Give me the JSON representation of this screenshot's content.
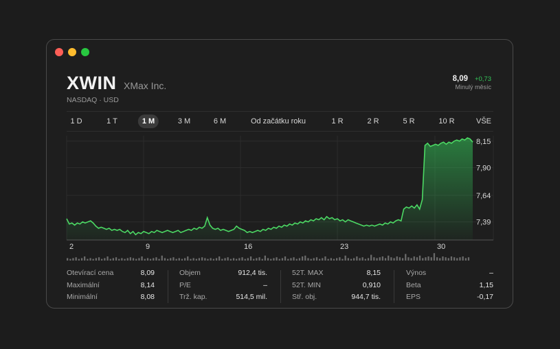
{
  "window": {
    "controls": [
      "close",
      "minimize",
      "zoom"
    ]
  },
  "header": {
    "ticker": "XWIN",
    "company": "XMax Inc.",
    "exchange": "NASDAQ · USD",
    "price": "8,09",
    "change": "+0,73",
    "period_label": "Minulý měsíc"
  },
  "tabs": {
    "items": [
      "1 D",
      "1 T",
      "1 M",
      "3 M",
      "6 M",
      "Od začátku roku",
      "1 R",
      "2 R",
      "5 R",
      "10 R",
      "VŠE"
    ],
    "active": "1 M"
  },
  "colors": {
    "up": "#34c759",
    "line": "#4cd964"
  },
  "chart_data": {
    "type": "area",
    "x_tick_labels": [
      "2",
      "9",
      "16",
      "23",
      "30"
    ],
    "y_tick_labels": [
      "8,15",
      "7,90",
      "7,64",
      "7,39"
    ],
    "y_ticks": [
      8.15,
      7.9,
      7.64,
      7.39
    ],
    "ylim": [
      7.22,
      8.2
    ],
    "xlim": [
      1,
      32.2
    ],
    "series": [
      {
        "values": [
          7.42,
          7.37,
          7.38,
          7.36,
          7.38,
          7.37,
          7.39,
          7.38,
          7.39,
          7.4,
          7.38,
          7.35,
          7.33,
          7.34,
          7.33,
          7.32,
          7.33,
          7.31,
          7.32,
          7.31,
          7.32,
          7.3,
          7.29,
          7.31,
          7.28,
          7.3,
          7.27,
          7.29,
          7.28,
          7.3,
          7.29,
          7.28,
          7.3,
          7.29,
          7.31,
          7.3,
          7.29,
          7.3,
          7.31,
          7.3,
          7.29,
          7.3,
          7.31,
          7.29,
          7.3,
          7.31,
          7.32,
          7.31,
          7.33,
          7.32,
          7.34,
          7.33,
          7.35,
          7.43,
          7.36,
          7.33,
          7.32,
          7.33,
          7.31,
          7.32,
          7.31,
          7.3,
          7.31,
          7.32,
          7.35,
          7.33,
          7.32,
          7.31,
          7.29,
          7.3,
          7.29,
          7.3,
          7.31,
          7.3,
          7.32,
          7.31,
          7.33,
          7.32,
          7.34,
          7.33,
          7.35,
          7.34,
          7.36,
          7.35,
          7.37,
          7.36,
          7.38,
          7.37,
          7.39,
          7.38,
          7.4,
          7.39,
          7.41,
          7.4,
          7.42,
          7.41,
          7.43,
          7.41,
          7.44,
          7.42,
          7.43,
          7.41,
          7.42,
          7.4,
          7.41,
          7.39,
          7.41,
          7.4,
          7.39,
          7.38,
          7.37,
          7.36,
          7.35,
          7.36,
          7.35,
          7.36,
          7.35,
          7.36,
          7.37,
          7.36,
          7.38,
          7.37,
          7.39,
          7.38,
          7.4,
          7.41,
          7.4,
          7.51,
          7.53,
          7.52,
          7.54,
          7.52,
          7.55,
          7.51,
          7.6,
          8.11,
          8.13,
          8.1,
          8.11,
          8.12,
          8.11,
          8.13,
          8.14,
          8.12,
          8.14,
          8.13,
          8.15,
          8.16,
          8.15,
          8.17,
          8.16,
          8.18,
          8.17,
          8.14
        ]
      }
    ],
    "volume": [
      3,
      2,
      3,
      4,
      2,
      3,
      5,
      2,
      3,
      2,
      3,
      4,
      2,
      3,
      5,
      2,
      3,
      4,
      2,
      3,
      2,
      3,
      4,
      3,
      2,
      3,
      5,
      2,
      3,
      2,
      3,
      4,
      2,
      6,
      3,
      2,
      3,
      4,
      2,
      3,
      2,
      3,
      5,
      2,
      3,
      2,
      3,
      4,
      3,
      2,
      3,
      2,
      3,
      5,
      2,
      3,
      4,
      2,
      3,
      2,
      3,
      4,
      2,
      3,
      5,
      2,
      3,
      4,
      2,
      6,
      3,
      2,
      3,
      4,
      2,
      3,
      5,
      2,
      3,
      4,
      2,
      3,
      5,
      6,
      3,
      2,
      3,
      4,
      2,
      3,
      5,
      2,
      3,
      2,
      3,
      4,
      2,
      6,
      3,
      2,
      3,
      5,
      3,
      4,
      2,
      3,
      7,
      4,
      3,
      4,
      5,
      3,
      6,
      4,
      3,
      5,
      4,
      3,
      8,
      4,
      3,
      5,
      4,
      6,
      3,
      4,
      5,
      4,
      9,
      4,
      3,
      5,
      4,
      3,
      5,
      4,
      3,
      4,
      5,
      3,
      4
    ]
  },
  "stats": {
    "col1": [
      {
        "label": "Otevírací cena",
        "value": "8,09"
      },
      {
        "label": "Maximální",
        "value": "8,14"
      },
      {
        "label": "Minimální",
        "value": "8,08"
      }
    ],
    "col2": [
      {
        "label": "Objem",
        "value": "912,4 tis."
      },
      {
        "label": "P/E",
        "value": "–"
      },
      {
        "label": "Trž. kap.",
        "value": "514,5 mil."
      }
    ],
    "col3": [
      {
        "label": "52T. MAX",
        "value": "8,15"
      },
      {
        "label": "52T. MIN",
        "value": "0,910"
      },
      {
        "label": "Stř. obj.",
        "value": "944,7 tis."
      }
    ],
    "col4": [
      {
        "label": "Výnos",
        "value": "–"
      },
      {
        "label": "Beta",
        "value": "1,15"
      },
      {
        "label": "EPS",
        "value": "-0,17"
      }
    ]
  }
}
